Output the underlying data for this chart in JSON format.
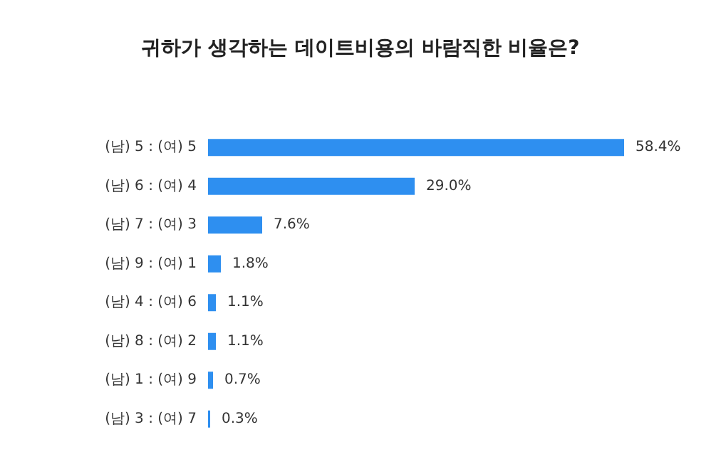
{
  "chart_data": {
    "type": "bar",
    "orientation": "horizontal",
    "title": "귀하가 생각하는 데이트비용의 바람직한 비율은?",
    "categories": [
      "(남) 5 : (여) 5",
      "(남) 6 : (여) 4",
      "(남) 7 : (여) 3",
      "(남) 9 : (여) 1",
      "(남) 4 : (여) 6",
      "(남) 8 : (여) 2",
      "(남) 1 : (여) 9",
      "(남) 3 : (여) 7"
    ],
    "values": [
      58.4,
      29.0,
      7.6,
      1.8,
      1.1,
      1.1,
      0.7,
      0.3
    ],
    "value_labels": [
      "58.4%",
      "29.0%",
      "7.6%",
      "1.8%",
      "1.1%",
      "1.1%",
      "0.7%",
      "0.3%"
    ],
    "color": "#2e8ff0"
  }
}
